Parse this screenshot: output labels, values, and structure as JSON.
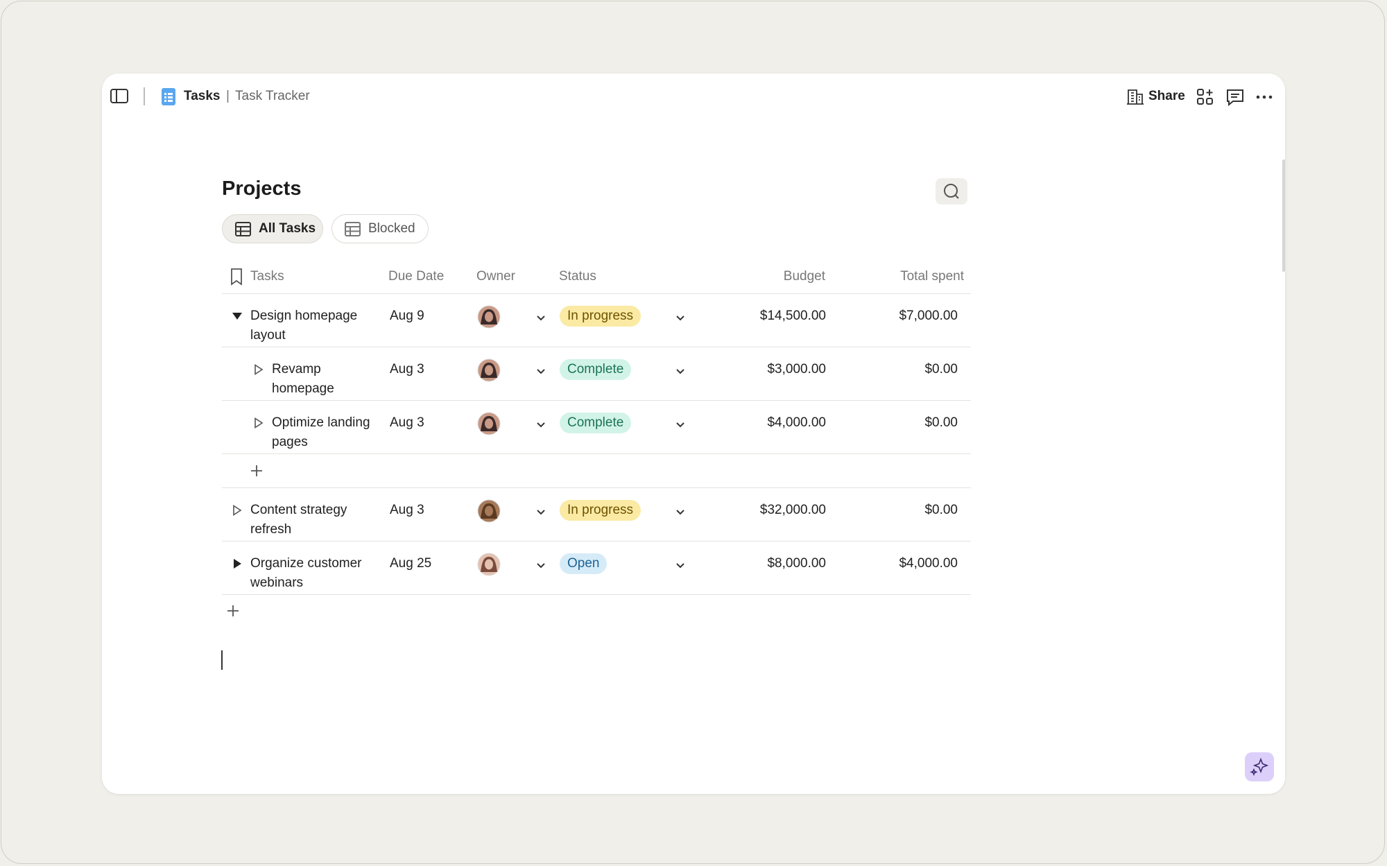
{
  "header": {
    "doc": "Tasks",
    "separator": "|",
    "page": "Task Tracker",
    "share": "Share"
  },
  "title": "Projects",
  "tabs": [
    "All Tasks",
    "Blocked"
  ],
  "table": {
    "columns": [
      "Tasks",
      "Due Date",
      "Owner",
      "Status",
      "Budget",
      "Total spent"
    ],
    "rows": [
      {
        "task": "Design homepage layout",
        "due": "Aug 9",
        "status": "In progress",
        "status_bg": "#fbeaa3",
        "status_fg": "#6e5200",
        "budget": "$14,500.00",
        "spent": "$7,000.00",
        "expanded": true,
        "children": [
          {
            "task": "Revamp homepage",
            "due": "Aug 3",
            "status": "Complete",
            "status_bg": "#d2f3e8",
            "status_fg": "#1b7357",
            "budget": "$3,000.00",
            "spent": "$0.00"
          },
          {
            "task": "Optimize landing pages",
            "due": "Aug 3",
            "status": "Complete",
            "status_bg": "#d2f3e8",
            "status_fg": "#1b7357",
            "budget": "$4,000.00",
            "spent": "$0.00"
          }
        ]
      },
      {
        "task": "Content strategy refresh",
        "due": "Aug 3",
        "status": "In progress",
        "status_bg": "#fbeaa3",
        "status_fg": "#6e5200",
        "budget": "$32,000.00",
        "spent": "$0.00"
      },
      {
        "task": "Organize customer webinars",
        "due": "Aug 25",
        "status": "Open",
        "status_bg": "#d6ebf8",
        "status_fg": "#1d6494",
        "budget": "$8,000.00",
        "spent": "$4,000.00",
        "has_children": true
      }
    ]
  }
}
